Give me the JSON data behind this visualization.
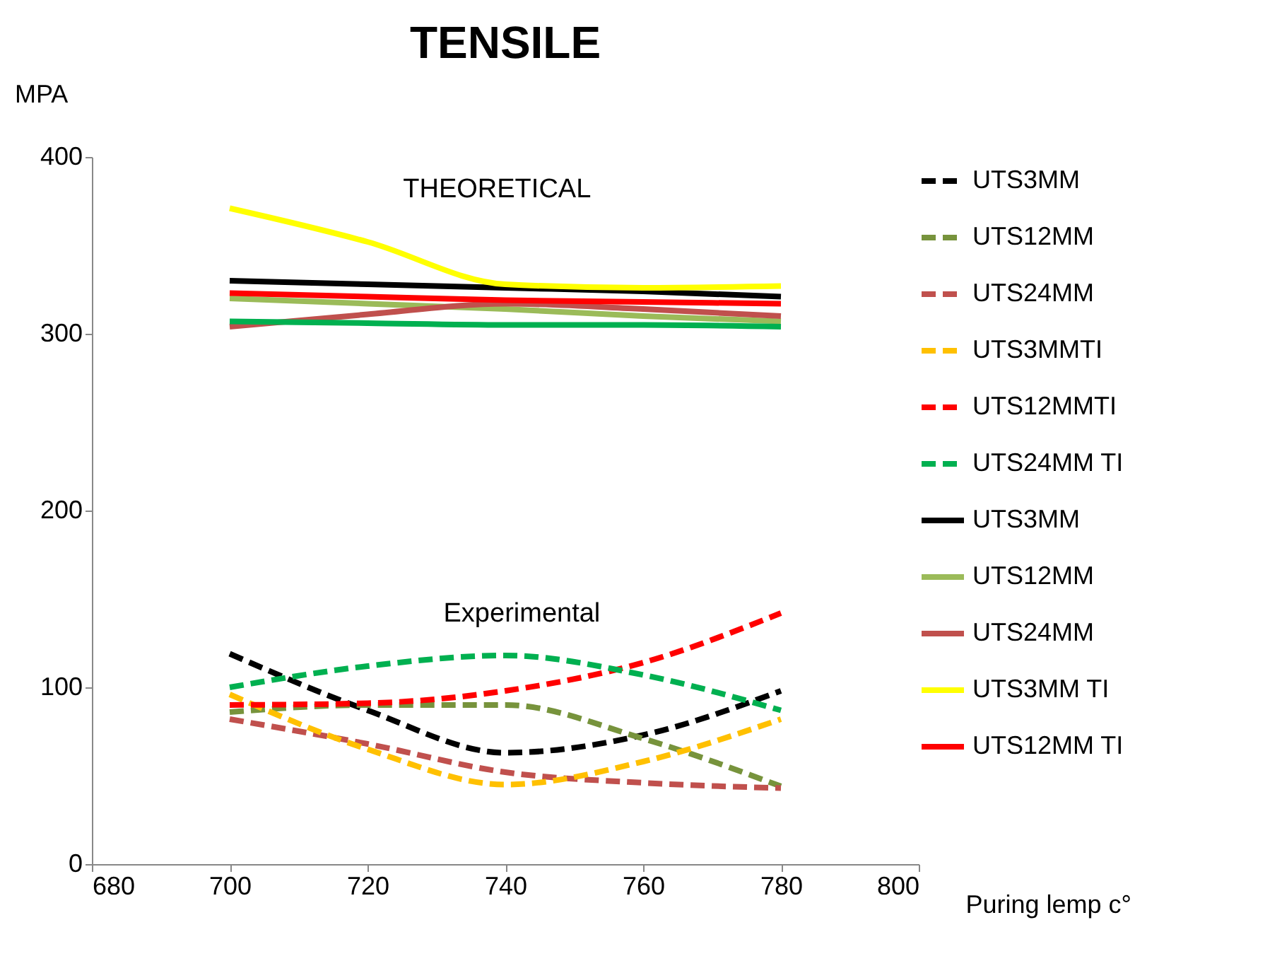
{
  "chart_data": {
    "type": "line",
    "title": "TENSILE",
    "xlabel": "Puring lemp c°",
    "ylabel": "MPA",
    "x": [
      700,
      720,
      740,
      760,
      780
    ],
    "xlim": [
      680,
      800
    ],
    "xticks": [
      680,
      700,
      720,
      740,
      760,
      780,
      800
    ],
    "ylim": [
      0,
      400
    ],
    "yticks": [
      0,
      100,
      200,
      300,
      400
    ],
    "grid": false,
    "legend": "right",
    "marker": "none",
    "annotations": [
      "THEORETICAL",
      "Experimental"
    ],
    "series": [
      {
        "name": "UTS3MM",
        "color": "#000000",
        "line_style": "dashed",
        "values": [
          119,
          87,
          63,
          73,
          98
        ]
      },
      {
        "name": "UTS12MM",
        "color": "#77933c",
        "line_style": "dashed",
        "values": [
          86,
          90,
          90,
          71,
          44
        ]
      },
      {
        "name": "UTS24MM",
        "color": "#c0504d",
        "line_style": "dashed",
        "values": [
          82,
          68,
          52,
          46,
          43
        ]
      },
      {
        "name": "UTS3MMTI",
        "color": "#ffc000",
        "line_style": "dashed",
        "values": [
          96,
          65,
          45,
          58,
          82
        ]
      },
      {
        "name": "UTS12MMTI",
        "color": "#ff0000",
        "line_style": "dashed",
        "values": [
          90,
          91,
          98,
          114,
          142
        ]
      },
      {
        "name": "UTS24MM TI",
        "color": "#00b050",
        "line_style": "dashed",
        "values": [
          100,
          112,
          118,
          107,
          87
        ]
      },
      {
        "name": "UTS3MM",
        "color": "#000000",
        "line_style": "solid",
        "values": [
          330,
          328,
          326,
          324,
          321
        ]
      },
      {
        "name": "UTS12MM",
        "color": "#9bbb59",
        "line_style": "solid",
        "values": [
          320,
          317,
          314,
          310,
          307
        ]
      },
      {
        "name": "UTS24MM",
        "color": "#c0504d",
        "line_style": "solid",
        "values": [
          304,
          311,
          317,
          314,
          310
        ]
      },
      {
        "name": "UTS3MM TI",
        "color": "#ffff00",
        "line_style": "solid",
        "values": [
          371,
          352,
          328,
          326,
          327
        ]
      },
      {
        "name": "UTS12MM TI",
        "color": "#ff0000",
        "line_style": "solid",
        "values": [
          323,
          321,
          319,
          318,
          317
        ]
      },
      {
        "color": "#00b050",
        "line_style": "solid",
        "values": [
          307,
          306,
          305,
          305,
          304
        ]
      }
    ]
  }
}
